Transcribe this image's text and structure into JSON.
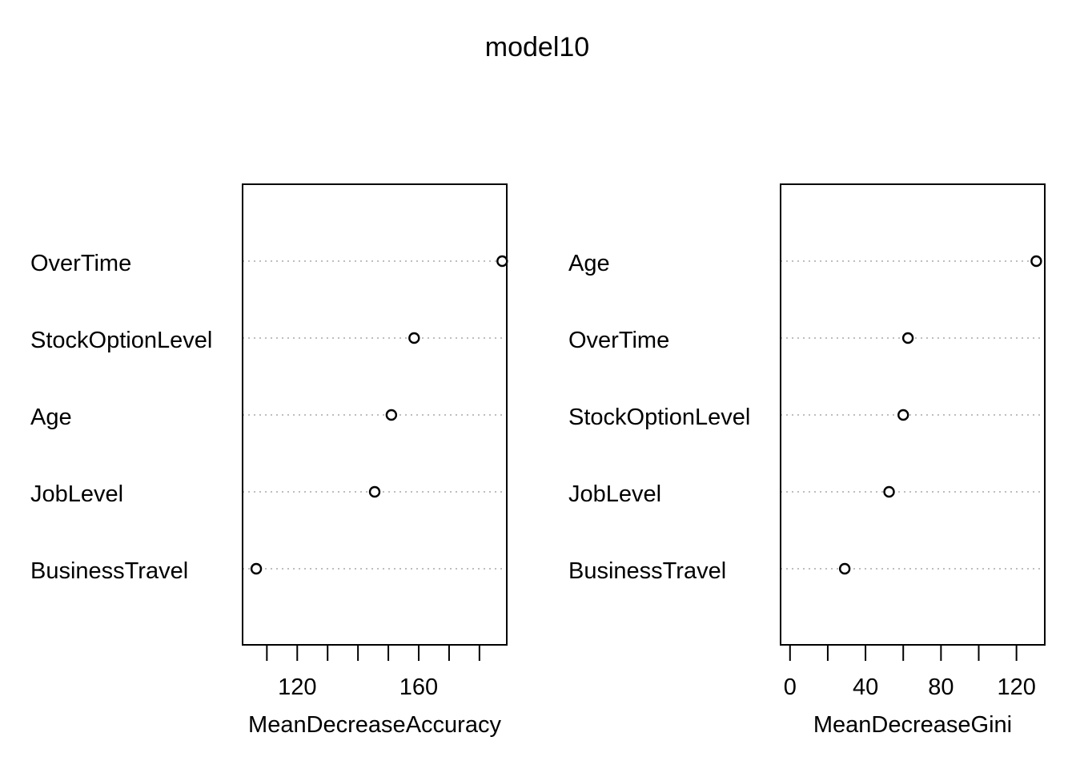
{
  "title": "model10",
  "chart_data": [
    {
      "type": "scatter",
      "variant": "dotchart",
      "title": "",
      "xlabel": "MeanDecreaseAccuracy",
      "ylabel": "",
      "categories": [
        "OverTime",
        "StockOptionLevel",
        "Age",
        "JobLevel",
        "BusinessTravel"
      ],
      "values": [
        187.5,
        158.5,
        151.0,
        145.5,
        106.5
      ],
      "xlim": [
        102,
        189
      ],
      "xticks": [
        110,
        120,
        130,
        140,
        150,
        160,
        170,
        180
      ],
      "xticklabels": [
        "120",
        "160"
      ],
      "grid": true
    },
    {
      "type": "scatter",
      "variant": "dotchart",
      "title": "",
      "xlabel": "MeanDecreaseGini",
      "ylabel": "",
      "categories": [
        "Age",
        "OverTime",
        "StockOptionLevel",
        "JobLevel",
        "BusinessTravel"
      ],
      "values": [
        130.5,
        62.5,
        60.0,
        52.5,
        29.0
      ],
      "xlim": [
        -5,
        135
      ],
      "xticks": [
        0,
        20,
        40,
        60,
        80,
        100,
        120
      ],
      "xticklabels": [
        "0",
        "40",
        "80",
        "120"
      ],
      "grid": true
    }
  ]
}
